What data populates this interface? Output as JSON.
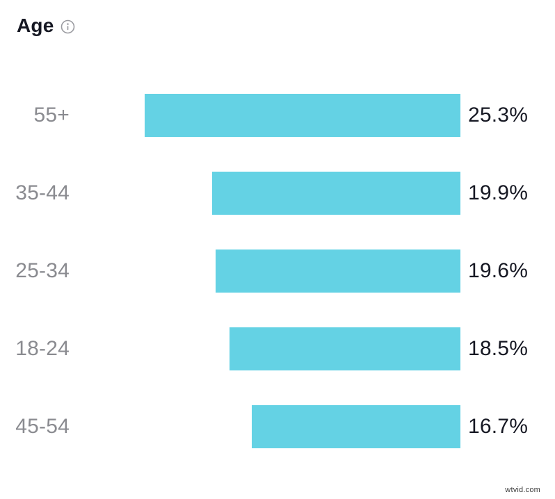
{
  "header": {
    "title": "Age",
    "icon": {
      "name": "info-icon",
      "glyph": "ⓘ"
    }
  },
  "chart_data": {
    "type": "bar",
    "orientation": "horizontal",
    "bar_alignment": "right",
    "title": "Age",
    "categories": [
      "55+",
      "35-44",
      "25-34",
      "18-24",
      "45-54"
    ],
    "values": [
      25.3,
      19.9,
      19.6,
      18.5,
      16.7
    ],
    "value_labels": [
      "25.3%",
      "19.9%",
      "19.6%",
      "18.5%",
      "16.7%"
    ],
    "unit": "%",
    "xlim": [
      0,
      25.3
    ],
    "grid": false,
    "legend": false
  },
  "colors": {
    "bar": "#64d2e4",
    "category_label": "#8a8b90",
    "value_label": "#161823",
    "title": "#161823",
    "background": "#ffffff",
    "info_icon": "#9b9ca1",
    "watermark": "#3c3c3c"
  },
  "watermark": "wtvid.com"
}
